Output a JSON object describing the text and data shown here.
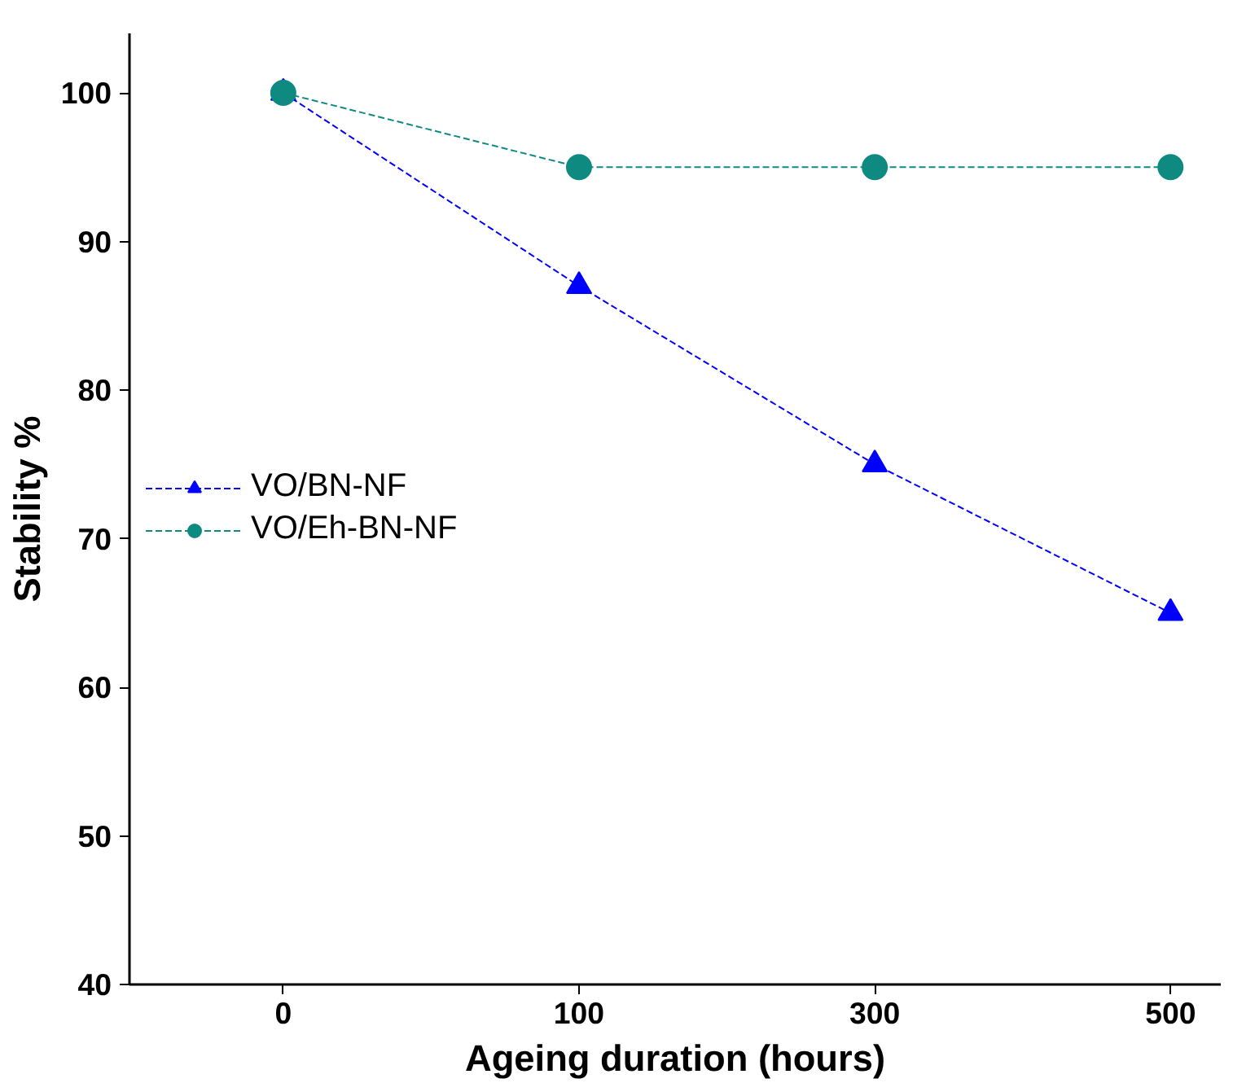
{
  "chart_data": {
    "type": "line",
    "xlabel": "Ageing duration (hours)",
    "ylabel": "Stability %",
    "categories": [
      "0",
      "100",
      "300",
      "500"
    ],
    "ylim": [
      40,
      104
    ],
    "yticks": [
      40,
      50,
      60,
      70,
      80,
      90,
      100
    ],
    "line_style": "dashed",
    "grid": false,
    "legend": "left",
    "series": [
      {
        "name": "VO/BN-NF",
        "color": "#0000ff",
        "marker": "triangle",
        "values": [
          100,
          87,
          75,
          65
        ]
      },
      {
        "name": "VO/Eh-BN-NF",
        "color": "#0e8a80",
        "marker": "circle",
        "values": [
          100,
          95,
          95,
          95
        ]
      }
    ]
  }
}
